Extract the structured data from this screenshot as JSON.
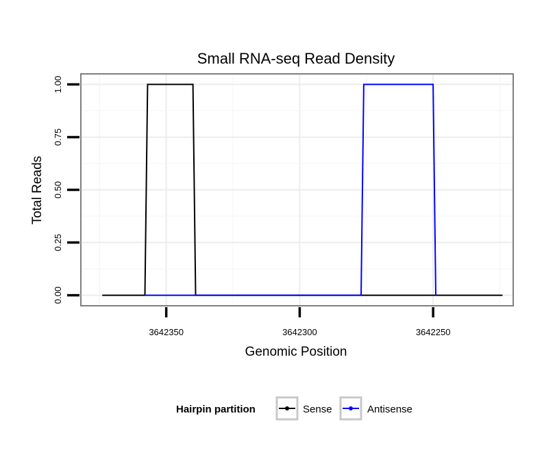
{
  "chart_data": {
    "type": "line",
    "title": "Small RNA-seq Read Density",
    "xlabel": "Genomic Position",
    "ylabel": "Total Reads",
    "x_reversed": true,
    "xlim": [
      3642382,
      3642220
    ],
    "ylim": [
      -0.05,
      1.05
    ],
    "x_ticks": [
      3642350,
      3642300,
      3642250
    ],
    "x_tick_labels": [
      "3642350",
      "3642300",
      "3642250"
    ],
    "y_ticks": [
      0,
      0.25,
      0.5,
      0.75,
      1.0
    ],
    "y_tick_labels": [
      "0.00",
      "0.25",
      "0.50",
      "0.75",
      "1.00"
    ],
    "grid": true,
    "legend": {
      "title": "Hairpin partition",
      "placement": "bottom"
    },
    "series": [
      {
        "name": "Sense",
        "color": "#000000",
        "x": [
          3642374,
          3642358,
          3642357,
          3642340,
          3642339,
          3642277,
          3642276,
          3642250,
          3642249,
          3642224
        ],
        "y": [
          0,
          0,
          1,
          1,
          0,
          0,
          0,
          0,
          0,
          0
        ]
      },
      {
        "name": "Antisense",
        "color": "#0000ff",
        "x": [
          3642358,
          3642339,
          3642277,
          3642276,
          3642250,
          3642249
        ],
        "y": [
          0,
          0,
          0,
          1,
          1,
          0
        ]
      }
    ]
  }
}
